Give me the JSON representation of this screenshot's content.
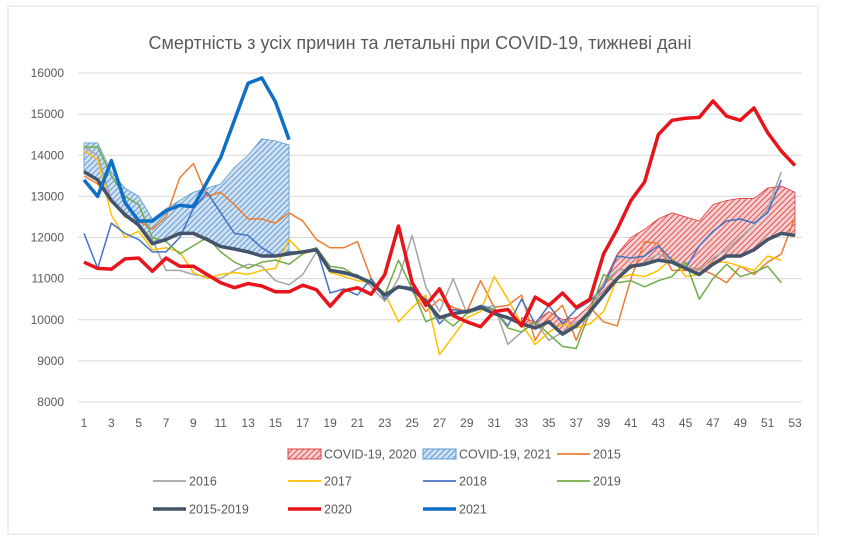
{
  "chart_data": {
    "type": "line",
    "title": "Смертність з усіх причин та летальні при COVID-19, тижневі дані",
    "xlabel": "",
    "ylabel": "",
    "ylim": [
      8000,
      16000
    ],
    "yticks": [
      8000,
      9000,
      10000,
      11000,
      12000,
      13000,
      14000,
      15000,
      16000
    ],
    "xlim": [
      1,
      53
    ],
    "xticks": [
      1,
      3,
      5,
      7,
      9,
      11,
      13,
      15,
      17,
      19,
      21,
      23,
      25,
      27,
      29,
      31,
      33,
      35,
      37,
      39,
      41,
      43,
      45,
      47,
      49,
      51,
      53
    ],
    "grid": true,
    "legend_position": "bottom",
    "bands": [
      {
        "name": "COVID-19, 2020",
        "color": "#e03c3c",
        "pattern": "hatched",
        "weeks_start": 33,
        "upper": [
          10050,
          9950,
          10200,
          10000,
          10050,
          10350,
          10900,
          11600,
          12000,
          12200,
          12450,
          12600,
          12500,
          12400,
          12800,
          12900,
          12950,
          12950,
          13200,
          13250,
          13100
        ],
        "lower_series": "2015-2019"
      },
      {
        "name": "COVID-19, 2021",
        "color": "#5b9bd5",
        "pattern": "hatched",
        "weeks_start": 1,
        "upper": [
          14300,
          14300,
          13600,
          13200,
          13000,
          12450,
          12700,
          12900,
          13100,
          13200,
          13300,
          13700,
          14000,
          14400,
          14350,
          14250
        ],
        "lower_series": "2015-2019"
      }
    ],
    "series": [
      {
        "name": "2015",
        "color": "#ed7d31",
        "width": 1.5,
        "values": [
          13500,
          13300,
          12900,
          12500,
          12400,
          12200,
          12500,
          13450,
          13800,
          13000,
          13100,
          12800,
          12450,
          12450,
          12350,
          12600,
          12400,
          11950,
          11750,
          11750,
          11900,
          11000,
          10600,
          10800,
          10700,
          10200,
          10500,
          10300,
          10200,
          10950,
          10300,
          10350,
          10600,
          9500,
          10050,
          10350,
          9500,
          10300,
          9950,
          9850,
          11000,
          11900,
          11850,
          11200,
          11200,
          11250,
          11100,
          10900,
          11300,
          11100,
          11400,
          11600,
          12500
        ]
      },
      {
        "name": "2016",
        "color": "#a5a5a5",
        "width": 1.5,
        "values": [
          14200,
          14000,
          12900,
          12600,
          12300,
          11950,
          11200,
          11200,
          11100,
          11050,
          11000,
          11200,
          11350,
          11300,
          10950,
          10850,
          11100,
          11650,
          11200,
          11100,
          11100,
          10800,
          10450,
          11000,
          12050,
          10800,
          10200,
          11000,
          10150,
          10250,
          10350,
          9400,
          9700,
          9950,
          9500,
          9700,
          9950,
          10100,
          10900,
          11200,
          11250,
          11400,
          11600,
          11450,
          11300,
          11200,
          11500,
          11700,
          12000,
          12300,
          12700,
          13600
        ]
      },
      {
        "name": "2017",
        "color": "#ffc000",
        "width": 1.5,
        "values": [
          14100,
          13900,
          12550,
          12000,
          12150,
          11700,
          11750,
          11650,
          11150,
          11000,
          11100,
          11150,
          11100,
          11200,
          11250,
          11950,
          11600,
          11700,
          11150,
          11050,
          10950,
          10900,
          10650,
          9950,
          10300,
          10600,
          9150,
          9600,
          10050,
          10200,
          11050,
          10500,
          9900,
          9400,
          9700,
          9900,
          9800,
          9900,
          10200,
          11000,
          11100,
          11050,
          11200,
          11500,
          11050,
          11100,
          11400,
          11400,
          11300,
          11200,
          11550,
          11450
        ]
      },
      {
        "name": "2018",
        "color": "#4472c4",
        "width": 1.5,
        "values": [
          12100,
          11250,
          12350,
          12100,
          11950,
          11650,
          11650,
          12000,
          12700,
          13100,
          12600,
          12100,
          12050,
          11750,
          11550,
          11650,
          11650,
          11750,
          10650,
          10750,
          10600,
          11000,
          10500,
          10800,
          10700,
          10500,
          9900,
          10250,
          10200,
          10350,
          10250,
          9850,
          10500,
          9900,
          10350,
          9900,
          10250,
          10450,
          10800,
          11550,
          11500,
          11550,
          11800,
          11450,
          11250,
          11800,
          12150,
          12400,
          12450,
          12350,
          12600,
          13400
        ]
      },
      {
        "name": "2019",
        "color": "#70ad47",
        "width": 1.5,
        "values": [
          14200,
          14200,
          13500,
          13000,
          12800,
          12000,
          11900,
          11600,
          11800,
          12000,
          11650,
          11400,
          11250,
          11400,
          11450,
          11350,
          11600,
          11750,
          11300,
          11250,
          11050,
          10900,
          10600,
          11450,
          10750,
          9950,
          10100,
          9850,
          10150,
          10300,
          10250,
          9800,
          9700,
          9950,
          9650,
          9350,
          9300,
          10200,
          11100,
          10900,
          10950,
          10800,
          10950,
          11050,
          11400,
          10500,
          11000,
          11350,
          11050,
          11150,
          11300,
          10900
        ]
      },
      {
        "name": "2015-2019",
        "color": "#44546a",
        "width": 3.5,
        "values": [
          13600,
          13400,
          12900,
          12550,
          12300,
          11850,
          11950,
          12100,
          12100,
          11950,
          11780,
          11720,
          11650,
          11550,
          11550,
          11600,
          11650,
          11700,
          11200,
          11150,
          11050,
          10900,
          10600,
          10800,
          10750,
          10450,
          10050,
          10150,
          10200,
          10300,
          10150,
          10050,
          9900,
          9800,
          9950,
          9650,
          9850,
          10200,
          10600,
          11000,
          11300,
          11350,
          11450,
          11400,
          11250,
          11100,
          11350,
          11550,
          11550,
          11700,
          11950,
          12100,
          12050
        ]
      },
      {
        "name": "2020",
        "color": "#e8141c",
        "width": 3.5,
        "values": [
          11400,
          11250,
          11230,
          11480,
          11500,
          11180,
          11500,
          11300,
          11300,
          11100,
          10900,
          10780,
          10880,
          10820,
          10680,
          10680,
          10840,
          10730,
          10330,
          10700,
          10780,
          10620,
          11100,
          12280,
          10900,
          10350,
          10750,
          10100,
          9950,
          9830,
          10200,
          10250,
          9850,
          10550,
          10350,
          10650,
          10300,
          10500,
          11600,
          12200,
          12900,
          13350,
          14500,
          14850,
          14900,
          14920,
          15320,
          14950,
          14850,
          15150,
          14550,
          14100,
          13750
        ]
      },
      {
        "name": "2021",
        "color": "#0f6fc6",
        "width": 3.5,
        "values": [
          13400,
          13000,
          13870,
          12850,
          12400,
          12400,
          12650,
          12780,
          12750,
          13350,
          13950,
          14850,
          15750,
          15880,
          15300,
          14380
        ]
      }
    ],
    "legend": [
      {
        "label": "COVID-19, 2020",
        "kind": "band",
        "color": "#e03c3c"
      },
      {
        "label": "COVID-19, 2021",
        "kind": "band",
        "color": "#5b9bd5"
      },
      {
        "label": "2015",
        "kind": "line",
        "color": "#ed7d31"
      },
      {
        "label": "2016",
        "kind": "line",
        "color": "#a5a5a5"
      },
      {
        "label": "2017",
        "kind": "line",
        "color": "#ffc000"
      },
      {
        "label": "2018",
        "kind": "line",
        "color": "#4472c4"
      },
      {
        "label": "2019",
        "kind": "line",
        "color": "#70ad47"
      },
      {
        "label": "2015-2019",
        "kind": "line",
        "color": "#44546a"
      },
      {
        "label": "2020",
        "kind": "line",
        "color": "#e8141c"
      },
      {
        "label": "2021",
        "kind": "line",
        "color": "#0f6fc6"
      }
    ]
  }
}
